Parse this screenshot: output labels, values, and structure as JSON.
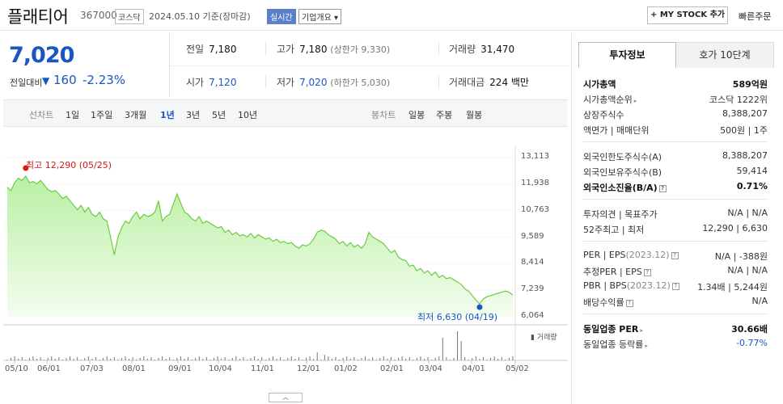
{
  "header": {
    "name": "플래티어",
    "code": "367000",
    "market": "코스닥",
    "date": "2024.05.10 기준(장마감)",
    "realtime": "실시간",
    "company_info": "기업개요 ▾",
    "mystock_button": "+ MY STOCK 추가",
    "quick_order": "빠른주문"
  },
  "price": {
    "current": "7,020",
    "change_label": "전일대비",
    "change_arrow": "▼",
    "change_value": "160",
    "change_pct": "-2.23%"
  },
  "summary": {
    "prev_label": "전일",
    "prev": "7,180",
    "high_label": "고가",
    "high": "7,180",
    "upper_limit": "(상한가 9,330)",
    "volume_label": "거래량",
    "volume": "31,470",
    "open_label": "시가",
    "open": "7,120",
    "low_label": "저가",
    "low": "7,020",
    "lower_limit": "(하한가 5,030)",
    "amount_label": "거래대금",
    "amount": "224 백만"
  },
  "period": {
    "line_label": "선차트",
    "line_items": [
      "1일",
      "1주일",
      "3개월",
      "1년",
      "3년",
      "5년",
      "10년"
    ],
    "active": "1년",
    "candle_label": "봉차트",
    "candle_items": [
      "일봉",
      "주봉",
      "월봉"
    ]
  },
  "chart_data": {
    "type": "area",
    "ylim": [
      6064,
      13113
    ],
    "yticks": [
      "13,113",
      "11,938",
      "10,763",
      "9,589",
      "8,414",
      "7,239",
      "6,064"
    ],
    "xticks": [
      "05/10",
      "06/01",
      "07/03",
      "08/01",
      "09/01",
      "10/04",
      "11/01",
      "12/01",
      "01/02",
      "02/01",
      "03/04",
      "04/01",
      "05/02"
    ],
    "high_annotation": "최고 12,290 (05/25)",
    "low_annotation": "최저 6,630 (04/19)",
    "volume_label": "거래량",
    "series": [
      {
        "values": [
          11800,
          11650,
          12000,
          12200,
          12100,
          12290,
          12000,
          12050,
          11950,
          12100,
          11900,
          11700,
          11600,
          11650,
          11500,
          11300,
          11400,
          11200,
          11000,
          10800,
          11000,
          10700,
          10900,
          10600,
          10500,
          10700,
          10400,
          10300,
          9600,
          8800,
          9600,
          10000,
          10300,
          10200,
          10500,
          10700,
          10400,
          10600,
          10500,
          10550,
          10700,
          11200,
          10300,
          10500,
          10600,
          11050,
          11500,
          11100,
          10700,
          10600,
          10400,
          10300,
          10500,
          10200,
          10300,
          10200,
          10100,
          10000,
          10050,
          9800,
          9900,
          9700,
          9800,
          9650,
          9700,
          9600,
          9750,
          9550,
          9700,
          9600,
          9500,
          9550,
          9400,
          9500,
          9350,
          9400,
          9300,
          9350,
          9200,
          9100,
          9250,
          9200,
          9300,
          9500,
          9800,
          9900,
          9850,
          9700,
          9600,
          9500,
          9300,
          9400,
          9200,
          9350,
          9150,
          9250,
          9100,
          9300,
          9800,
          9600,
          9500,
          9400,
          9300,
          9100,
          8900,
          9000,
          8700,
          8600,
          8550,
          8300,
          8350,
          8100,
          8200,
          8000,
          8100,
          7900,
          8050,
          7800,
          7900,
          7750,
          7800,
          7700,
          7600,
          7500,
          7300,
          7200,
          7000,
          6800,
          6630,
          6850,
          6950,
          7000,
          7050,
          7100,
          7150,
          7200,
          7150,
          7020
        ]
      }
    ]
  },
  "info": {
    "tab_invest": "투자정보",
    "tab_quote": "호가 10단계",
    "market_cap_label": "시가총액",
    "market_cap": "589억원",
    "cap_rank_label": "시가총액순위",
    "cap_rank": "코스닥 1222위",
    "shares_label": "상장주식수",
    "shares": "8,388,207",
    "face_label": "액면가 | 매매단위",
    "face": "500원 | 1주",
    "foreign_limit_label": "외국인한도주식수(A)",
    "foreign_limit": "8,388,207",
    "foreign_hold_label": "외국인보유주식수(B)",
    "foreign_hold": "59,414",
    "foreign_ratio_label": "외국인소진율(B/A)",
    "foreign_ratio": "0.71%",
    "opinion_label": "투자의견 | 목표주가",
    "opinion": "N/A | N/A",
    "w52_label": "52주최고 | 최저",
    "w52": "12,290 | 6,630",
    "per_label": "PER | EPS",
    "per_year": "(2023.12)",
    "per": "N/A | -388원",
    "est_per_label": "추정PER | EPS",
    "est_per": "N/A | N/A",
    "pbr_label": "PBR | BPS",
    "pbr_year": "(2023.12)",
    "pbr": "1.34배 | 5,244원",
    "dividend_label": "배당수익률",
    "dividend": "N/A",
    "sector_per_label": "동일업종 PER",
    "sector_per": "30.66배",
    "sector_chg_label": "동일업종 등락률",
    "sector_chg": "-0.77%"
  }
}
